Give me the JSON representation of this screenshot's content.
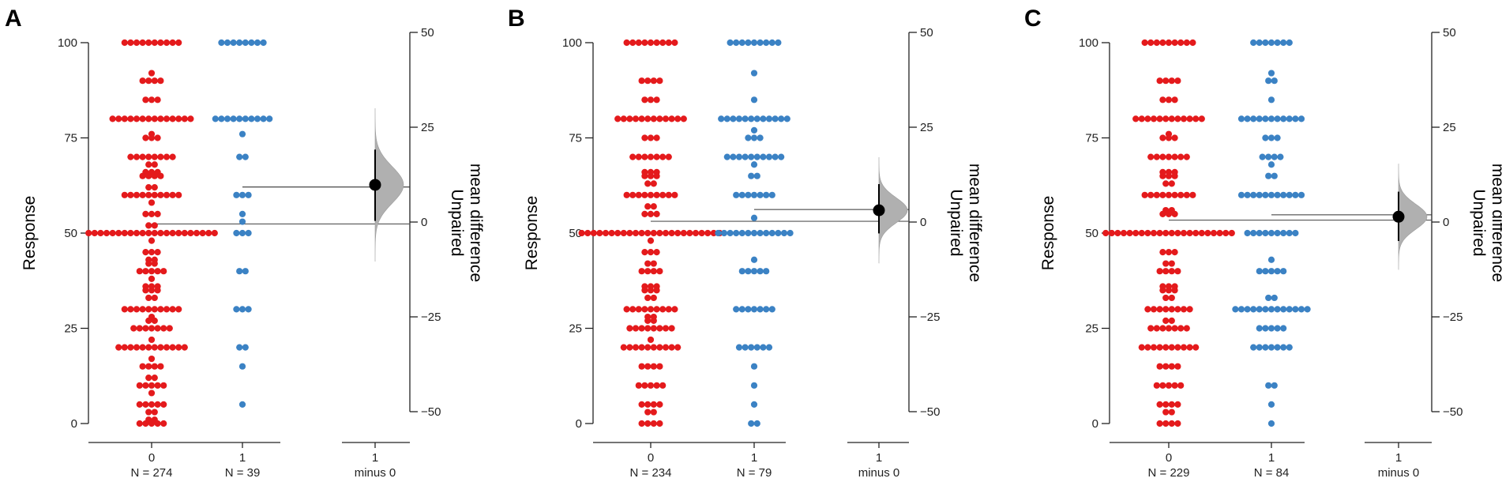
{
  "colors": {
    "group0": "#e41a1c",
    "group1": "#3b82c4",
    "axis": "#222222",
    "distribution": "#b0b0b0",
    "effect": "#000000"
  },
  "chart_data": [
    {
      "type": "scatter",
      "panel": "A",
      "ylabel": "Response",
      "ylim": [
        0,
        100
      ],
      "yticks": [
        "0",
        "25",
        "50",
        "75",
        "100"
      ],
      "right_label": [
        "Unpaired",
        "mean difference"
      ],
      "right_ticks": [
        "−50",
        "−25",
        "0",
        "25",
        "50"
      ],
      "right_ylim": [
        -50,
        50
      ],
      "categories": [
        {
          "label": "0",
          "n": "N = 274"
        },
        {
          "label": "1",
          "n": "N = 39"
        },
        {
          "label": "1",
          "n": "minus 0"
        }
      ],
      "series": [
        {
          "name": "0",
          "values": [
            [
              100,
              10
            ],
            [
              92,
              1
            ],
            [
              90,
              4
            ],
            [
              85,
              3
            ],
            [
              80,
              14
            ],
            [
              76,
              1
            ],
            [
              75,
              3
            ],
            [
              70,
              8
            ],
            [
              68,
              2
            ],
            [
              66,
              3
            ],
            [
              65,
              4
            ],
            [
              62,
              2
            ],
            [
              60,
              10
            ],
            [
              58,
              1
            ],
            [
              55,
              3
            ],
            [
              52,
              2
            ],
            [
              50,
              22
            ],
            [
              48,
              1
            ],
            [
              45,
              3
            ],
            [
              43,
              2
            ],
            [
              42,
              2
            ],
            [
              40,
              5
            ],
            [
              38,
              1
            ],
            [
              36,
              3
            ],
            [
              35,
              3
            ],
            [
              33,
              2
            ],
            [
              30,
              10
            ],
            [
              28,
              1
            ],
            [
              27,
              2
            ],
            [
              25,
              7
            ],
            [
              22,
              1
            ],
            [
              20,
              12
            ],
            [
              17,
              1
            ],
            [
              15,
              4
            ],
            [
              12,
              2
            ],
            [
              10,
              5
            ],
            [
              8,
              1
            ],
            [
              5,
              5
            ],
            [
              3,
              2
            ],
            [
              1,
              2
            ],
            [
              0,
              5
            ]
          ]
        },
        {
          "name": "1",
          "values": [
            [
              100,
              8
            ],
            [
              80,
              10
            ],
            [
              76,
              1
            ],
            [
              70,
              2
            ],
            [
              60,
              3
            ],
            [
              55,
              1
            ],
            [
              53,
              1
            ],
            [
              50,
              3
            ],
            [
              40,
              2
            ],
            [
              30,
              3
            ],
            [
              20,
              2
            ],
            [
              15,
              1
            ],
            [
              5,
              1
            ]
          ]
        }
      ],
      "group_means": [
        52.4,
        62.1
      ],
      "effect": {
        "mean": 9.8,
        "ci": [
          0.3,
          19.1
        ]
      }
    },
    {
      "type": "scatter",
      "panel": "B",
      "ylabel": "Response",
      "ylim": [
        0,
        100
      ],
      "yticks": [
        "0",
        "25",
        "50",
        "75",
        "100"
      ],
      "right_label": [
        "Unpaired",
        "mean difference"
      ],
      "right_ticks": [
        "−50",
        "−25",
        "0",
        "25",
        "50"
      ],
      "right_ylim": [
        -50,
        50
      ],
      "categories": [
        {
          "label": "0",
          "n": "N = 234"
        },
        {
          "label": "1",
          "n": "N = 79"
        },
        {
          "label": "1",
          "n": "minus 0"
        }
      ],
      "series": [
        {
          "name": "0",
          "values": [
            [
              100,
              9
            ],
            [
              90,
              4
            ],
            [
              85,
              3
            ],
            [
              80,
              12
            ],
            [
              75,
              3
            ],
            [
              70,
              7
            ],
            [
              66,
              3
            ],
            [
              65,
              3
            ],
            [
              63,
              2
            ],
            [
              60,
              9
            ],
            [
              57,
              2
            ],
            [
              55,
              3
            ],
            [
              50,
              24
            ],
            [
              48,
              1
            ],
            [
              45,
              3
            ],
            [
              42,
              2
            ],
            [
              40,
              4
            ],
            [
              36,
              3
            ],
            [
              35,
              3
            ],
            [
              33,
              2
            ],
            [
              30,
              9
            ],
            [
              28,
              2
            ],
            [
              27,
              2
            ],
            [
              25,
              8
            ],
            [
              22,
              1
            ],
            [
              20,
              10
            ],
            [
              15,
              4
            ],
            [
              10,
              5
            ],
            [
              5,
              4
            ],
            [
              3,
              2
            ],
            [
              0,
              4
            ]
          ]
        },
        {
          "name": "1",
          "values": [
            [
              100,
              9
            ],
            [
              92,
              1
            ],
            [
              85,
              1
            ],
            [
              80,
              12
            ],
            [
              77,
              1
            ],
            [
              75,
              3
            ],
            [
              70,
              10
            ],
            [
              68,
              1
            ],
            [
              65,
              2
            ],
            [
              60,
              7
            ],
            [
              54,
              1
            ],
            [
              50,
              13
            ],
            [
              43,
              1
            ],
            [
              40,
              5
            ],
            [
              30,
              7
            ],
            [
              20,
              6
            ],
            [
              15,
              1
            ],
            [
              10,
              1
            ],
            [
              5,
              1
            ],
            [
              0,
              2
            ]
          ]
        }
      ],
      "group_means": [
        53.1,
        56.2
      ],
      "effect": {
        "mean": 3.1,
        "ci": [
          -3.0,
          10.0
        ]
      }
    },
    {
      "type": "scatter",
      "panel": "C",
      "ylabel": "Response",
      "ylim": [
        0,
        100
      ],
      "yticks": [
        "0",
        "25",
        "50",
        "75",
        "100"
      ],
      "right_label": [
        "Unpaired",
        "mean difference"
      ],
      "right_ticks": [
        "−50",
        "−25",
        "0",
        "25",
        "50"
      ],
      "right_ylim": [
        -50,
        50
      ],
      "categories": [
        {
          "label": "0",
          "n": "N = 229"
        },
        {
          "label": "1",
          "n": "N = 84"
        },
        {
          "label": "1",
          "n": "minus 0"
        }
      ],
      "series": [
        {
          "name": "0",
          "values": [
            [
              100,
              9
            ],
            [
              90,
              4
            ],
            [
              85,
              3
            ],
            [
              80,
              12
            ],
            [
              76,
              1
            ],
            [
              75,
              3
            ],
            [
              70,
              7
            ],
            [
              66,
              3
            ],
            [
              65,
              3
            ],
            [
              63,
              2
            ],
            [
              60,
              9
            ],
            [
              56,
              2
            ],
            [
              55,
              3
            ],
            [
              50,
              22
            ],
            [
              45,
              3
            ],
            [
              42,
              2
            ],
            [
              40,
              4
            ],
            [
              36,
              3
            ],
            [
              35,
              3
            ],
            [
              33,
              2
            ],
            [
              30,
              8
            ],
            [
              27,
              2
            ],
            [
              25,
              7
            ],
            [
              20,
              10
            ],
            [
              15,
              4
            ],
            [
              10,
              5
            ],
            [
              5,
              4
            ],
            [
              3,
              2
            ],
            [
              0,
              4
            ]
          ]
        },
        {
          "name": "1",
          "values": [
            [
              100,
              7
            ],
            [
              92,
              1
            ],
            [
              90,
              2
            ],
            [
              85,
              1
            ],
            [
              80,
              11
            ],
            [
              75,
              3
            ],
            [
              70,
              4
            ],
            [
              68,
              1
            ],
            [
              65,
              2
            ],
            [
              60,
              11
            ],
            [
              50,
              9
            ],
            [
              43,
              1
            ],
            [
              40,
              5
            ],
            [
              33,
              2
            ],
            [
              30,
              13
            ],
            [
              25,
              5
            ],
            [
              20,
              7
            ],
            [
              10,
              2
            ],
            [
              5,
              1
            ],
            [
              0,
              1
            ]
          ]
        }
      ],
      "group_means": [
        53.4,
        54.8
      ],
      "effect": {
        "mean": 1.4,
        "ci": [
          -5.0,
          8.0
        ]
      }
    }
  ]
}
